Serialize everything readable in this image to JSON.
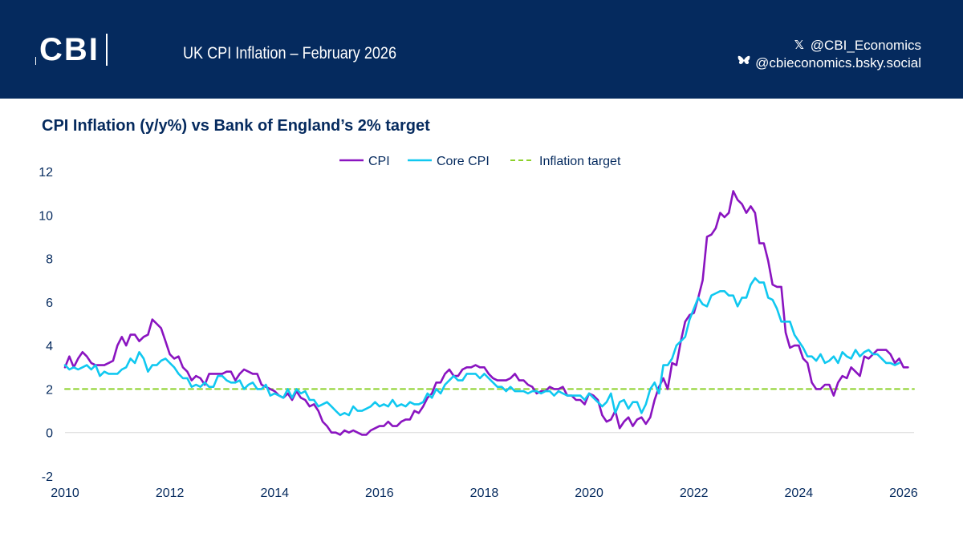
{
  "header": {
    "logo_text": "CBI",
    "title": "UK CPI Inflation – February 2026",
    "social_x_icon": "x-logo-icon",
    "social_x": "@CBI_Economics",
    "social_bsky_icon": "butterfly-icon",
    "social_bsky": "@cbieconomics.bsky.social"
  },
  "colors": {
    "header_bg": "#052a5e",
    "text_navy": "#052a5e",
    "cpi": "#8a14c0",
    "core": "#10c8f0",
    "target": "#8cd12a"
  },
  "chart_data": {
    "type": "line",
    "title": "CPI Inflation (y/y%) vs Bank of England’s 2% target",
    "xlabel": "",
    "ylabel": "",
    "xlim": [
      2010,
      2026.2
    ],
    "ylim": [
      -2,
      12
    ],
    "x_ticks": [
      "2010",
      "2012",
      "2014",
      "2016",
      "2018",
      "2020",
      "2022",
      "2024",
      "2026"
    ],
    "y_ticks": [
      "-2",
      "0",
      "2",
      "4",
      "6",
      "8",
      "10",
      "12"
    ],
    "x_start": "2010-01",
    "x_step": "monthly",
    "legend_position": "top-center",
    "grid": false,
    "series": [
      {
        "name": "CPI",
        "values": [
          3.0,
          3.5,
          3.0,
          3.4,
          3.7,
          3.5,
          3.2,
          3.1,
          3.1,
          3.1,
          3.2,
          3.3,
          4.0,
          4.4,
          4.0,
          4.5,
          4.5,
          4.2,
          4.4,
          4.5,
          5.2,
          5.0,
          4.8,
          4.2,
          3.6,
          3.4,
          3.5,
          3.0,
          2.8,
          2.4,
          2.6,
          2.5,
          2.2,
          2.7,
          2.7,
          2.7,
          2.7,
          2.8,
          2.8,
          2.4,
          2.7,
          2.9,
          2.8,
          2.7,
          2.7,
          2.2,
          2.1,
          2.0,
          1.9,
          1.7,
          1.6,
          1.8,
          1.5,
          1.9,
          1.6,
          1.5,
          1.2,
          1.3,
          1.0,
          0.5,
          0.3,
          0.0,
          0.0,
          -0.1,
          0.1,
          0.0,
          0.1,
          0.0,
          -0.1,
          -0.1,
          0.1,
          0.2,
          0.3,
          0.3,
          0.5,
          0.3,
          0.3,
          0.5,
          0.6,
          0.6,
          1.0,
          0.9,
          1.2,
          1.6,
          1.8,
          2.3,
          2.3,
          2.7,
          2.9,
          2.6,
          2.6,
          2.9,
          3.0,
          3.0,
          3.1,
          3.0,
          3.0,
          2.7,
          2.5,
          2.4,
          2.4,
          2.4,
          2.5,
          2.7,
          2.4,
          2.4,
          2.2,
          2.1,
          1.8,
          1.9,
          1.9,
          2.1,
          2.0,
          2.0,
          2.1,
          1.7,
          1.7,
          1.5,
          1.5,
          1.3,
          1.8,
          1.7,
          1.5,
          0.8,
          0.5,
          0.6,
          1.0,
          0.2,
          0.5,
          0.7,
          0.3,
          0.6,
          0.7,
          0.4,
          0.7,
          1.5,
          2.1,
          2.5,
          2.0,
          3.2,
          3.1,
          4.2,
          5.1,
          5.4,
          5.5,
          6.2,
          7.0,
          9.0,
          9.1,
          9.4,
          10.1,
          9.9,
          10.1,
          11.1,
          10.7,
          10.5,
          10.1,
          10.4,
          10.1,
          8.7,
          8.7,
          7.9,
          6.8,
          6.7,
          6.7,
          4.6,
          3.9,
          4.0,
          4.0,
          3.4,
          3.2,
          2.3,
          2.0,
          2.0,
          2.2,
          2.2,
          1.7,
          2.3,
          2.6,
          2.5,
          3.0,
          2.8,
          2.6,
          3.5,
          3.4,
          3.6,
          3.8,
          3.8,
          3.8,
          3.6,
          3.2,
          3.4,
          3.0,
          3.0
        ],
        "color": "#8a14c0"
      },
      {
        "name": "Core CPI",
        "values": [
          3.1,
          2.9,
          3.0,
          2.9,
          3.0,
          3.1,
          2.9,
          3.1,
          2.6,
          2.8,
          2.7,
          2.7,
          2.7,
          2.9,
          3.0,
          3.4,
          3.2,
          3.7,
          3.4,
          2.8,
          3.1,
          3.1,
          3.3,
          3.4,
          3.2,
          3.0,
          2.7,
          2.5,
          2.5,
          2.1,
          2.2,
          2.1,
          2.3,
          2.1,
          2.1,
          2.6,
          2.6,
          2.4,
          2.3,
          2.3,
          2.4,
          2.0,
          2.2,
          2.3,
          2.0,
          2.0,
          2.2,
          1.7,
          1.8,
          1.7,
          1.6,
          2.0,
          1.6,
          2.0,
          1.8,
          1.9,
          1.5,
          1.5,
          1.2,
          1.3,
          1.4,
          1.2,
          1.0,
          0.8,
          0.9,
          0.8,
          1.2,
          1.0,
          1.0,
          1.1,
          1.2,
          1.4,
          1.2,
          1.3,
          1.2,
          1.5,
          1.2,
          1.3,
          1.2,
          1.4,
          1.3,
          1.3,
          1.4,
          1.8,
          1.6,
          2.0,
          1.8,
          2.2,
          2.4,
          2.6,
          2.4,
          2.4,
          2.7,
          2.7,
          2.7,
          2.5,
          2.7,
          2.5,
          2.3,
          2.1,
          2.1,
          1.9,
          2.1,
          1.9,
          1.9,
          1.9,
          1.8,
          1.9,
          1.9,
          1.8,
          1.9,
          1.9,
          1.7,
          1.9,
          1.8,
          1.7,
          1.7,
          1.7,
          1.7,
          1.5,
          1.8,
          1.6,
          1.4,
          1.2,
          1.4,
          1.8,
          0.9,
          1.4,
          1.5,
          1.1,
          1.4,
          1.4,
          0.9,
          1.3,
          2.0,
          2.3,
          1.8,
          3.1,
          3.1,
          3.4,
          4.0,
          4.2,
          4.4,
          5.2,
          5.7,
          6.2,
          5.9,
          5.8,
          6.3,
          6.4,
          6.5,
          6.5,
          6.3,
          6.3,
          5.8,
          6.2,
          6.2,
          6.8,
          7.1,
          6.9,
          6.9,
          6.2,
          6.1,
          5.7,
          5.1,
          5.1,
          5.1,
          4.5,
          4.2,
          3.9,
          3.5,
          3.5,
          3.3,
          3.6,
          3.2,
          3.3,
          3.5,
          3.2,
          3.7,
          3.5,
          3.4,
          3.8,
          3.5,
          3.7,
          3.8,
          3.6,
          3.6,
          3.4,
          3.2,
          3.2,
          3.1,
          3.2
        ],
        "color": "#10c8f0"
      },
      {
        "name": "Inflation target",
        "values": [
          2,
          2
        ],
        "x": [
          2010,
          2026.2
        ],
        "style": "dashed",
        "color": "#8cd12a"
      }
    ]
  }
}
